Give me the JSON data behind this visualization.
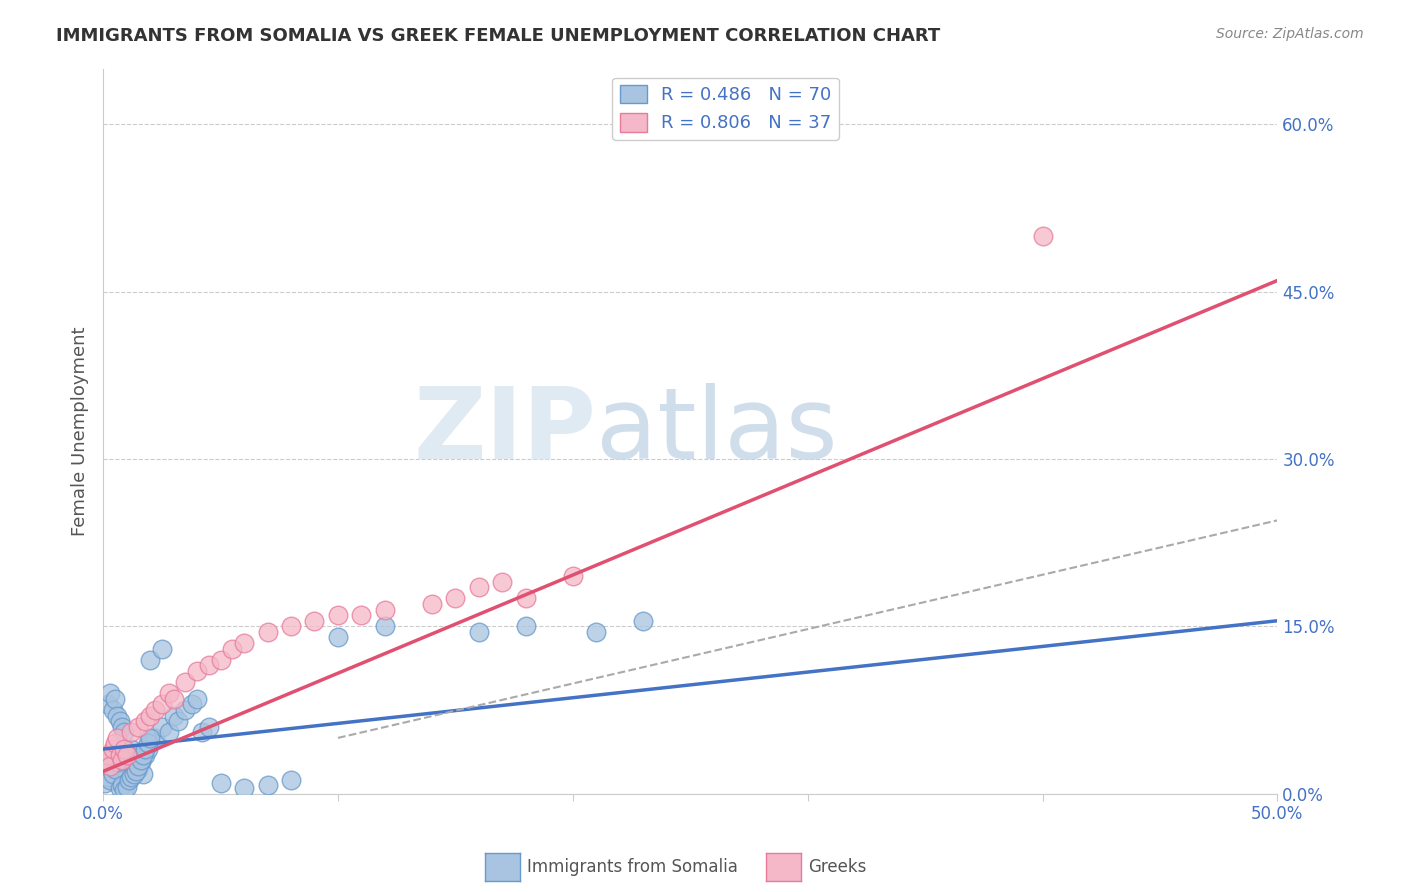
{
  "title": "IMMIGRANTS FROM SOMALIA VS GREEK FEMALE UNEMPLOYMENT CORRELATION CHART",
  "source": "Source: ZipAtlas.com",
  "ylabel": "Female Unemployment",
  "xlim": [
    0.0,
    0.5
  ],
  "ylim": [
    0.0,
    0.65
  ],
  "xticks": [
    0.0,
    0.1,
    0.2,
    0.3,
    0.4,
    0.5
  ],
  "xtick_labels": [
    "0.0%",
    "",
    "",
    "",
    "",
    "50.0%"
  ],
  "ytick_labels_right": [
    "0.0%",
    "15.0%",
    "30.0%",
    "45.0%",
    "60.0%"
  ],
  "ytick_positions_right": [
    0.0,
    0.15,
    0.3,
    0.45,
    0.6
  ],
  "grid_color": "#cccccc",
  "background_color": "#ffffff",
  "somalia_color": "#a8c4e0",
  "somalia_edge_color": "#6699cc",
  "greek_color": "#f4b8c8",
  "greek_edge_color": "#e87a9a",
  "somalia_R": 0.486,
  "somalia_N": 70,
  "greek_R": 0.806,
  "greek_N": 37,
  "legend_text_color": "#4472c4",
  "somalia_scatter_x": [
    0.001,
    0.002,
    0.003,
    0.004,
    0.005,
    0.006,
    0.007,
    0.008,
    0.009,
    0.01,
    0.011,
    0.012,
    0.013,
    0.014,
    0.015,
    0.016,
    0.017,
    0.018,
    0.019,
    0.02,
    0.022,
    0.025,
    0.028,
    0.03,
    0.032,
    0.035,
    0.038,
    0.04,
    0.042,
    0.045,
    0.001,
    0.002,
    0.003,
    0.004,
    0.005,
    0.006,
    0.007,
    0.008,
    0.009,
    0.01,
    0.011,
    0.012,
    0.013,
    0.014,
    0.015,
    0.016,
    0.017,
    0.018,
    0.019,
    0.02,
    0.002,
    0.003,
    0.004,
    0.005,
    0.006,
    0.007,
    0.008,
    0.009,
    0.02,
    0.025,
    0.21,
    0.23,
    0.1,
    0.12,
    0.16,
    0.18,
    0.05,
    0.06,
    0.07,
    0.08
  ],
  "somalia_scatter_y": [
    0.025,
    0.02,
    0.03,
    0.025,
    0.022,
    0.018,
    0.028,
    0.032,
    0.015,
    0.02,
    0.035,
    0.04,
    0.025,
    0.03,
    0.022,
    0.028,
    0.018,
    0.035,
    0.04,
    0.045,
    0.05,
    0.06,
    0.055,
    0.07,
    0.065,
    0.075,
    0.08,
    0.085,
    0.055,
    0.06,
    0.01,
    0.015,
    0.012,
    0.018,
    0.022,
    0.028,
    0.005,
    0.008,
    0.003,
    0.006,
    0.012,
    0.015,
    0.018,
    0.02,
    0.025,
    0.03,
    0.035,
    0.04,
    0.045,
    0.05,
    0.08,
    0.09,
    0.075,
    0.085,
    0.07,
    0.065,
    0.06,
    0.055,
    0.12,
    0.13,
    0.145,
    0.155,
    0.14,
    0.15,
    0.145,
    0.15,
    0.01,
    0.005,
    0.008,
    0.012
  ],
  "greek_scatter_x": [
    0.001,
    0.002,
    0.003,
    0.004,
    0.005,
    0.006,
    0.007,
    0.008,
    0.009,
    0.01,
    0.012,
    0.015,
    0.018,
    0.02,
    0.022,
    0.025,
    0.028,
    0.03,
    0.035,
    0.04,
    0.045,
    0.05,
    0.055,
    0.06,
    0.07,
    0.08,
    0.1,
    0.12,
    0.14,
    0.15,
    0.16,
    0.17,
    0.18,
    0.2,
    0.4,
    0.09,
    0.11
  ],
  "greek_scatter_y": [
    0.03,
    0.035,
    0.025,
    0.04,
    0.045,
    0.05,
    0.035,
    0.03,
    0.04,
    0.035,
    0.055,
    0.06,
    0.065,
    0.07,
    0.075,
    0.08,
    0.09,
    0.085,
    0.1,
    0.11,
    0.115,
    0.12,
    0.13,
    0.135,
    0.145,
    0.15,
    0.16,
    0.165,
    0.17,
    0.175,
    0.185,
    0.19,
    0.175,
    0.195,
    0.5,
    0.155,
    0.16
  ],
  "somalia_line_x": [
    0.0,
    0.5
  ],
  "somalia_line_y": [
    0.04,
    0.155
  ],
  "greek_line_x": [
    0.0,
    0.5
  ],
  "greek_line_y": [
    0.02,
    0.46
  ],
  "dashed_line_x": [
    0.1,
    0.5
  ],
  "dashed_line_y": [
    0.05,
    0.245
  ],
  "watermark_zip": "ZIP",
  "watermark_atlas": "atlas",
  "legend_somalia_label": "R = 0.486   N = 70",
  "legend_greek_label": "R = 0.806   N = 37",
  "bottom_label_somalia": "Immigrants from Somalia",
  "bottom_label_greeks": "Greeks"
}
